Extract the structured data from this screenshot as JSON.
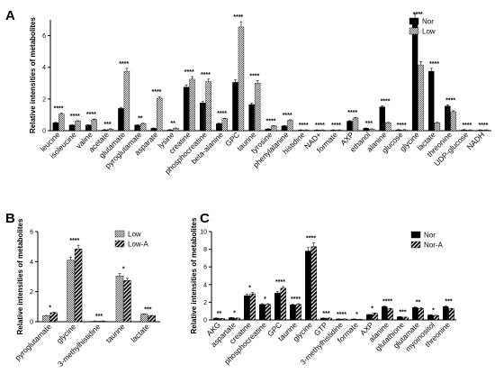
{
  "chart_data": [
    {
      "id": "A",
      "type": "bar",
      "panel_label": "A",
      "ylabel": "Relative intensities of metabolites",
      "ylim": [
        0,
        7
      ],
      "yticks": [
        0,
        2,
        4,
        6
      ],
      "legend_position": "top-right",
      "categories": [
        "leucine",
        "isoleucine",
        "valine",
        "acetate",
        "glutamate",
        "pyroglutamate",
        "asparate",
        "lysine",
        "creatine",
        "phosphocreatine",
        "beta-alanine",
        "GPC",
        "taurine",
        "tyrosine",
        "phenylalanine",
        "histidine",
        "NAD+",
        "formate",
        "AXP",
        "ethanol",
        "alanine",
        "glucose",
        "glycine",
        "lactate",
        "threonine",
        "UDP-glucose",
        "NADH"
      ],
      "series": [
        {
          "name": "Nor",
          "color": "#000000",
          "pattern": "solid",
          "values": [
            0.5,
            0.35,
            0.35,
            0.05,
            1.4,
            0.35,
            0.15,
            0.05,
            2.75,
            1.75,
            0.45,
            3.05,
            1.65,
            0.1,
            0.3,
            0.03,
            0.03,
            0.03,
            0.6,
            0.15,
            1.5,
            0.05,
            7.0,
            3.75,
            1.55,
            0.05,
            0.02
          ]
        },
        {
          "name": "Low",
          "color": "#888888",
          "pattern": "dots",
          "values": [
            1.05,
            0.6,
            0.7,
            0.1,
            3.75,
            0.45,
            2.05,
            0.15,
            3.25,
            3.1,
            0.75,
            6.55,
            3.0,
            0.3,
            0.65,
            0.03,
            0.03,
            0.03,
            0.8,
            0.1,
            0.5,
            0.05,
            4.15,
            0.5,
            1.2,
            0.03,
            0.02
          ]
        }
      ],
      "significance": [
        "****",
        "****",
        "****",
        "***",
        "****",
        "**",
        "****",
        "**",
        "****",
        "****",
        "****",
        "****",
        "****",
        "****",
        "****",
        "****",
        "****",
        "****",
        "****",
        "***",
        "****",
        "****",
        "****",
        "****",
        "****",
        "****",
        "****"
      ]
    },
    {
      "id": "B",
      "type": "bar",
      "panel_label": "B",
      "ylabel": "Relative intensities of metabolites",
      "ylim": [
        0,
        6
      ],
      "yticks": [
        0,
        2,
        4,
        6
      ],
      "legend_position": "top-right",
      "categories": [
        "pyroglutamate",
        "glycine",
        "3-methylhistidine",
        "taurine",
        "lactate"
      ],
      "series": [
        {
          "name": "Low",
          "color": "#888888",
          "pattern": "dots",
          "values": [
            0.4,
            4.1,
            0.03,
            3.05,
            0.5
          ]
        },
        {
          "name": "Low-A",
          "color": "#000000",
          "pattern": "stripes",
          "values": [
            0.6,
            4.85,
            0.03,
            2.75,
            0.4
          ]
        }
      ],
      "significance": [
        "*",
        "****",
        "***",
        "*",
        "***"
      ]
    },
    {
      "id": "C",
      "type": "bar",
      "panel_label": "C",
      "ylabel": "Relative intensities of metabolites",
      "ylim": [
        0,
        10
      ],
      "yticks": [
        0,
        2,
        4,
        6,
        8,
        10
      ],
      "legend_position": "top-right",
      "categories": [
        "AKG",
        "aspartate",
        "creatine",
        "phosphocreatine",
        "GPC",
        "taurine",
        "glycine",
        "GTP",
        "3-methylhistidine",
        "formate",
        "AXP",
        "alanine",
        "glutathione",
        "glutamate",
        "myoinositol",
        "threonine"
      ],
      "series": [
        {
          "name": "Nor",
          "color": "#000000",
          "pattern": "solid",
          "values": [
            0.2,
            0.25,
            2.75,
            1.75,
            3.05,
            1.7,
            7.8,
            0.2,
            0.1,
            0.1,
            0.6,
            1.5,
            0.35,
            1.4,
            0.55,
            1.5
          ]
        },
        {
          "name": "Nor-A",
          "color": "#000000",
          "pattern": "stripes",
          "values": [
            0.15,
            0.2,
            2.95,
            1.75,
            3.6,
            1.75,
            8.3,
            0.2,
            0.1,
            0.05,
            0.75,
            1.25,
            0.3,
            1.3,
            0.5,
            1.25
          ]
        }
      ],
      "significance": [
        "**",
        "*",
        "*",
        "*",
        "****",
        "****",
        "****",
        "***",
        "****",
        "*",
        "*",
        "****",
        "***",
        "**",
        "*",
        "***"
      ]
    }
  ]
}
